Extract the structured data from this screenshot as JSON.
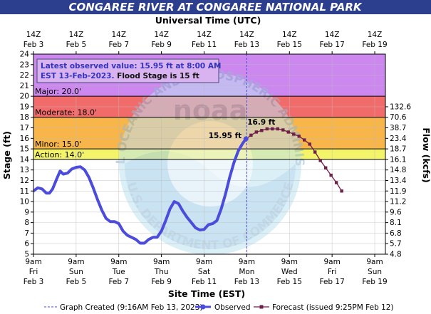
{
  "header": {
    "title": "CONGAREE RIVER AT CONGAREE NATIONAL PARK",
    "top_axis_title": "Universal Time (UTC)"
  },
  "chart_data": {
    "type": "line",
    "ylabel": "Stage (ft)",
    "y2label": "Flow (kcfs)",
    "xlabel": "Site Time (EST)",
    "ylim": [
      5,
      24
    ],
    "y_ticks": [
      "5",
      "6",
      "7",
      "8",
      "9",
      "10",
      "11",
      "12",
      "13",
      "14",
      "15",
      "16",
      "17",
      "18",
      "19",
      "20",
      "21",
      "22",
      "23",
      "24"
    ],
    "flow_ticks": [
      {
        "stage": 5,
        "label": "4.8"
      },
      {
        "stage": 6,
        "label": "5.7"
      },
      {
        "stage": 7,
        "label": "6.8"
      },
      {
        "stage": 8,
        "label": "8.1"
      },
      {
        "stage": 9,
        "label": "9.6"
      },
      {
        "stage": 10,
        "label": "11.2"
      },
      {
        "stage": 11,
        "label": "11.9"
      },
      {
        "stage": 12,
        "label": "13.4"
      },
      {
        "stage": 13,
        "label": "14.8"
      },
      {
        "stage": 14,
        "label": "16.1"
      },
      {
        "stage": 15,
        "label": "18.7"
      },
      {
        "stage": 16,
        "label": "23.4"
      },
      {
        "stage": 17,
        "label": "38.7"
      },
      {
        "stage": 18,
        "label": "70.6"
      },
      {
        "stage": 19,
        "label": "132.6"
      }
    ],
    "x_start_day": 3,
    "x_end_day": 19.5,
    "bottom_ticks": [
      {
        "day": 3,
        "l1": "9am",
        "l2": "Fri",
        "l3": "Feb 3"
      },
      {
        "day": 5,
        "l1": "9am",
        "l2": "Sun",
        "l3": "Feb 5"
      },
      {
        "day": 7,
        "l1": "9am",
        "l2": "Tue",
        "l3": "Feb 7"
      },
      {
        "day": 9,
        "l1": "9am",
        "l2": "Thu",
        "l3": "Feb 9"
      },
      {
        "day": 11,
        "l1": "9am",
        "l2": "Sat",
        "l3": "Feb 11"
      },
      {
        "day": 13,
        "l1": "9am",
        "l2": "Mon",
        "l3": "Feb 13"
      },
      {
        "day": 15,
        "l1": "9am",
        "l2": "Wed",
        "l3": "Feb 15"
      },
      {
        "day": 17,
        "l1": "9am",
        "l2": "Fri",
        "l3": "Feb 17"
      },
      {
        "day": 19,
        "l1": "9am",
        "l2": "Sun",
        "l3": "Feb 19"
      }
    ],
    "top_ticks": [
      {
        "day": 3,
        "l1": "14Z",
        "l2": "Feb 3"
      },
      {
        "day": 5,
        "l1": "14Z",
        "l2": "Feb 5"
      },
      {
        "day": 7,
        "l1": "14Z",
        "l2": "Feb 7"
      },
      {
        "day": 9,
        "l1": "14Z",
        "l2": "Feb 9"
      },
      {
        "day": 11,
        "l1": "14Z",
        "l2": "Feb 11"
      },
      {
        "day": 13,
        "l1": "14Z",
        "l2": "Feb 13"
      },
      {
        "day": 15,
        "l1": "14Z",
        "l2": "Feb 15"
      },
      {
        "day": 17,
        "l1": "14Z",
        "l2": "Feb 17"
      },
      {
        "day": 19,
        "l1": "14Z",
        "l2": "Feb 19"
      }
    ],
    "bands": [
      {
        "name": "Major: 20.0'",
        "from": 20,
        "to": 24,
        "color": "#cc88ee"
      },
      {
        "name": "Moderate: 18.0'",
        "from": 18,
        "to": 20,
        "color": "#f26b6b"
      },
      {
        "name": "Minor: 15.0'",
        "from": 15,
        "to": 18,
        "color": "#f7b54a"
      },
      {
        "name": "Action: 14.0'",
        "from": 14,
        "to": 15,
        "color": "#f4f46a"
      }
    ],
    "info_box": "Latest observed value: 15.95 ft at 8:00 AM EST 13-Feb-2023. Flood Stage is 15 ft",
    "info_line1": "Latest observed value: 15.95 ft at 8:00 AM",
    "info_line2a": "EST 13-Feb-2023.",
    "info_line2b": " Flood Stage is 15 ft",
    "observed_label": "15.95 ft",
    "forecast_label": "16.9 ft",
    "graph_created_day": 13.0,
    "observed": {
      "name": "Observed",
      "color": "#4b4bdc",
      "points": [
        [
          3.0,
          11.0
        ],
        [
          3.2,
          11.3
        ],
        [
          3.4,
          11.2
        ],
        [
          3.6,
          10.8
        ],
        [
          3.75,
          10.8
        ],
        [
          3.9,
          11.2
        ],
        [
          4.1,
          12.2
        ],
        [
          4.25,
          12.9
        ],
        [
          4.4,
          12.6
        ],
        [
          4.6,
          12.7
        ],
        [
          4.8,
          13.1
        ],
        [
          5.0,
          13.25
        ],
        [
          5.2,
          13.3
        ],
        [
          5.4,
          13.0
        ],
        [
          5.6,
          12.3
        ],
        [
          5.8,
          11.3
        ],
        [
          6.0,
          10.2
        ],
        [
          6.2,
          9.2
        ],
        [
          6.4,
          8.4
        ],
        [
          6.6,
          8.1
        ],
        [
          6.8,
          8.1
        ],
        [
          7.0,
          7.9
        ],
        [
          7.2,
          7.2
        ],
        [
          7.4,
          6.8
        ],
        [
          7.6,
          6.6
        ],
        [
          7.8,
          6.4
        ],
        [
          8.0,
          6.05
        ],
        [
          8.2,
          6.05
        ],
        [
          8.4,
          6.4
        ],
        [
          8.6,
          6.6
        ],
        [
          8.8,
          6.6
        ],
        [
          9.0,
          7.2
        ],
        [
          9.2,
          8.2
        ],
        [
          9.4,
          9.3
        ],
        [
          9.6,
          10.0
        ],
        [
          9.8,
          9.8
        ],
        [
          10.0,
          9.1
        ],
        [
          10.2,
          8.5
        ],
        [
          10.4,
          8.0
        ],
        [
          10.6,
          7.5
        ],
        [
          10.8,
          7.3
        ],
        [
          11.0,
          7.35
        ],
        [
          11.2,
          7.8
        ],
        [
          11.4,
          7.9
        ],
        [
          11.6,
          8.2
        ],
        [
          11.8,
          9.3
        ],
        [
          12.0,
          10.7
        ],
        [
          12.2,
          12.3
        ],
        [
          12.4,
          13.7
        ],
        [
          12.6,
          14.8
        ],
        [
          12.8,
          15.5
        ],
        [
          12.96,
          15.95
        ]
      ]
    },
    "forecast": {
      "name": "Forecast (issued 9:25PM Feb 12)",
      "color": "#6e1f4a",
      "points": [
        [
          12.96,
          15.95
        ],
        [
          13.2,
          16.3
        ],
        [
          13.45,
          16.6
        ],
        [
          13.7,
          16.75
        ],
        [
          13.95,
          16.9
        ],
        [
          14.2,
          16.9
        ],
        [
          14.45,
          16.9
        ],
        [
          14.7,
          16.8
        ],
        [
          14.95,
          16.6
        ],
        [
          15.2,
          16.4
        ],
        [
          15.45,
          16.2
        ],
        [
          15.7,
          15.85
        ],
        [
          15.95,
          15.45
        ],
        [
          16.2,
          14.7
        ],
        [
          16.45,
          13.9
        ],
        [
          16.7,
          13.2
        ],
        [
          16.95,
          12.5
        ],
        [
          17.2,
          11.8
        ],
        [
          17.45,
          11.0
        ]
      ]
    },
    "legend": {
      "created": "Graph Created (9:16AM Feb 13, 2023)",
      "observed": "Observed",
      "forecast": "Forecast (issued 9:25PM Feb 12)"
    },
    "watermark": {
      "text_top": "NATIONAL OCEANIC AND ATMOSPHERIC ADMINISTRATION",
      "text_bottom": "U.S. DEPARTMENT OF COMMERCE",
      "center": "noaa"
    }
  }
}
